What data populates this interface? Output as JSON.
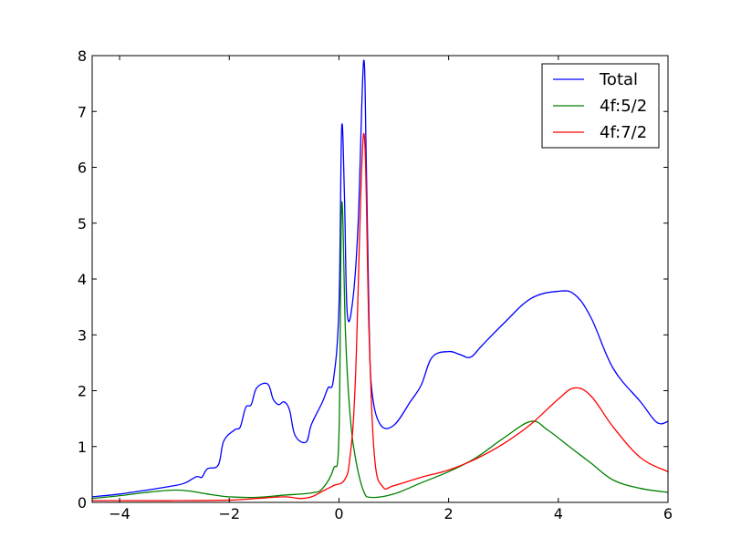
{
  "chart_data": {
    "type": "line",
    "title": "",
    "xlabel": "",
    "ylabel": "",
    "xlim": [
      -4.5,
      6
    ],
    "ylim": [
      0,
      8
    ],
    "xticks": [
      -4,
      -2,
      0,
      2,
      4,
      6
    ],
    "yticks": [
      0,
      1,
      2,
      3,
      4,
      5,
      6,
      7,
      8
    ],
    "xtick_labels": [
      "−4",
      "−2",
      "0",
      "2",
      "4",
      "6"
    ],
    "ytick_labels": [
      "0",
      "1",
      "2",
      "3",
      "4",
      "5",
      "6",
      "7",
      "8"
    ],
    "grid": false,
    "legend_position": "top-right",
    "series": [
      {
        "name": "Total",
        "color": "#0000ff",
        "points": [
          [
            -4.5,
            0.1
          ],
          [
            -4.0,
            0.15
          ],
          [
            -3.5,
            0.22
          ],
          [
            -3.0,
            0.3
          ],
          [
            -2.8,
            0.35
          ],
          [
            -2.6,
            0.46
          ],
          [
            -2.5,
            0.45
          ],
          [
            -2.4,
            0.6
          ],
          [
            -2.2,
            0.67
          ],
          [
            -2.1,
            1.1
          ],
          [
            -1.9,
            1.3
          ],
          [
            -1.8,
            1.35
          ],
          [
            -1.7,
            1.7
          ],
          [
            -1.6,
            1.75
          ],
          [
            -1.5,
            2.05
          ],
          [
            -1.3,
            2.12
          ],
          [
            -1.2,
            1.85
          ],
          [
            -1.1,
            1.75
          ],
          [
            -1.0,
            1.8
          ],
          [
            -0.9,
            1.65
          ],
          [
            -0.8,
            1.2
          ],
          [
            -0.6,
            1.08
          ],
          [
            -0.5,
            1.4
          ],
          [
            -0.3,
            1.8
          ],
          [
            -0.2,
            2.05
          ],
          [
            -0.1,
            2.2
          ],
          [
            0.0,
            3.5
          ],
          [
            0.05,
            6.7
          ],
          [
            0.1,
            5.5
          ],
          [
            0.15,
            3.4
          ],
          [
            0.25,
            3.6
          ],
          [
            0.35,
            5.0
          ],
          [
            0.45,
            7.9
          ],
          [
            0.5,
            6.0
          ],
          [
            0.55,
            3.2
          ],
          [
            0.6,
            2.0
          ],
          [
            0.75,
            1.4
          ],
          [
            1.0,
            1.38
          ],
          [
            1.3,
            1.8
          ],
          [
            1.5,
            2.1
          ],
          [
            1.7,
            2.6
          ],
          [
            2.0,
            2.7
          ],
          [
            2.2,
            2.65
          ],
          [
            2.4,
            2.6
          ],
          [
            2.6,
            2.8
          ],
          [
            3.0,
            3.2
          ],
          [
            3.5,
            3.65
          ],
          [
            4.0,
            3.78
          ],
          [
            4.3,
            3.72
          ],
          [
            4.6,
            3.3
          ],
          [
            5.0,
            2.4
          ],
          [
            5.5,
            1.8
          ],
          [
            5.8,
            1.43
          ],
          [
            6.0,
            1.45
          ]
        ]
      },
      {
        "name": "4f:5/2",
        "color": "#008000",
        "points": [
          [
            -4.5,
            0.07
          ],
          [
            -4.0,
            0.12
          ],
          [
            -3.5,
            0.18
          ],
          [
            -3.0,
            0.22
          ],
          [
            -2.7,
            0.2
          ],
          [
            -2.4,
            0.15
          ],
          [
            -2.0,
            0.1
          ],
          [
            -1.5,
            0.09
          ],
          [
            -1.0,
            0.13
          ],
          [
            -0.5,
            0.17
          ],
          [
            -0.3,
            0.25
          ],
          [
            -0.1,
            0.6
          ],
          [
            0.0,
            1.2
          ],
          [
            0.05,
            5.35
          ],
          [
            0.12,
            3.0
          ],
          [
            0.2,
            1.6
          ],
          [
            0.3,
            0.8
          ],
          [
            0.45,
            0.2
          ],
          [
            0.6,
            0.09
          ],
          [
            1.0,
            0.15
          ],
          [
            1.5,
            0.35
          ],
          [
            2.0,
            0.55
          ],
          [
            2.5,
            0.8
          ],
          [
            3.0,
            1.15
          ],
          [
            3.5,
            1.45
          ],
          [
            3.8,
            1.3
          ],
          [
            4.2,
            1.0
          ],
          [
            4.6,
            0.7
          ],
          [
            5.0,
            0.4
          ],
          [
            5.5,
            0.25
          ],
          [
            6.0,
            0.18
          ]
        ]
      },
      {
        "name": "4f:7/2",
        "color": "#ff0000",
        "points": [
          [
            -4.5,
            0.03
          ],
          [
            -4.0,
            0.03
          ],
          [
            -3.0,
            0.03
          ],
          [
            -2.0,
            0.04
          ],
          [
            -1.5,
            0.07
          ],
          [
            -1.0,
            0.1
          ],
          [
            -0.7,
            0.07
          ],
          [
            -0.5,
            0.1
          ],
          [
            -0.3,
            0.2
          ],
          [
            -0.1,
            0.3
          ],
          [
            0.1,
            0.4
          ],
          [
            0.2,
            0.8
          ],
          [
            0.3,
            2.2
          ],
          [
            0.45,
            6.6
          ],
          [
            0.55,
            3.0
          ],
          [
            0.65,
            0.8
          ],
          [
            0.8,
            0.28
          ],
          [
            1.0,
            0.3
          ],
          [
            1.5,
            0.45
          ],
          [
            2.0,
            0.58
          ],
          [
            2.5,
            0.78
          ],
          [
            3.0,
            1.05
          ],
          [
            3.5,
            1.4
          ],
          [
            4.0,
            1.85
          ],
          [
            4.3,
            2.05
          ],
          [
            4.6,
            1.9
          ],
          [
            5.0,
            1.35
          ],
          [
            5.5,
            0.8
          ],
          [
            6.0,
            0.55
          ]
        ]
      }
    ]
  }
}
